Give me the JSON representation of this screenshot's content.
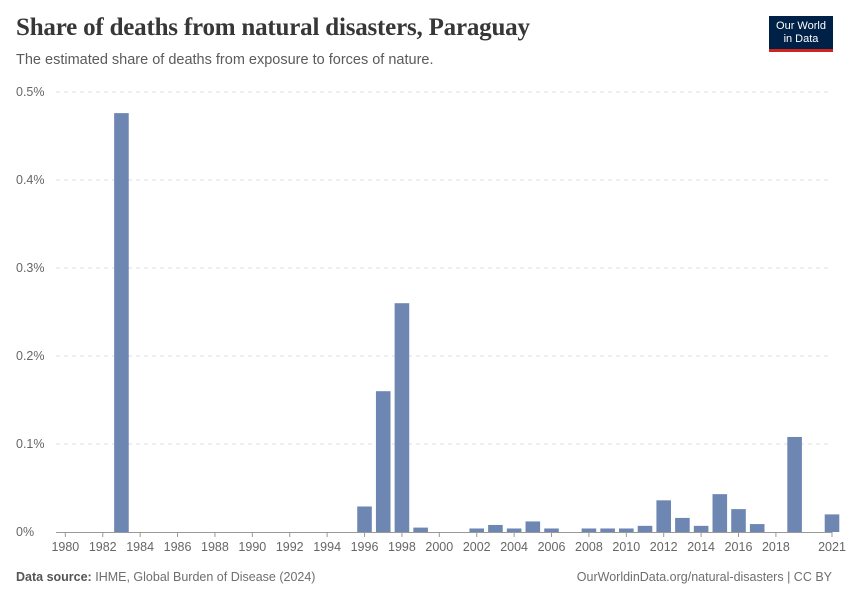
{
  "header": {
    "title": "Share of deaths from natural disasters, Paraguay",
    "subtitle": "The estimated share of deaths from exposure to forces of nature."
  },
  "logo": {
    "line1": "Our World",
    "line2": "in Data"
  },
  "footer": {
    "source_label": "Data source:",
    "source_text": "IHME, Global Burden of Disease (2024)",
    "link": "OurWorldinData.org/natural-disasters | CC BY"
  },
  "colors": {
    "bar": "#6d86b2",
    "grid": "#dddddd",
    "axis": "#999999",
    "text": "#666666"
  },
  "chart_data": {
    "type": "bar",
    "title": "Share of deaths from natural disasters, Paraguay",
    "xlabel": "",
    "ylabel": "",
    "ylim": [
      0,
      0.5
    ],
    "y_ticks": [
      0,
      0.1,
      0.2,
      0.3,
      0.4,
      0.5
    ],
    "y_tick_labels": [
      "0%",
      "0.1%",
      "0.2%",
      "0.3%",
      "0.4%",
      "0.5%"
    ],
    "x_tick_labels": [
      "1980",
      "1982",
      "1984",
      "1986",
      "1988",
      "1990",
      "1992",
      "1994",
      "1996",
      "1998",
      "2000",
      "2002",
      "2004",
      "2006",
      "2008",
      "2010",
      "2012",
      "2014",
      "2016",
      "2018",
      "2021"
    ],
    "x_range": [
      1980,
      2021
    ],
    "categories": [
      1980,
      1981,
      1982,
      1983,
      1984,
      1985,
      1986,
      1987,
      1988,
      1989,
      1990,
      1991,
      1992,
      1993,
      1994,
      1995,
      1996,
      1997,
      1998,
      1999,
      2000,
      2001,
      2002,
      2003,
      2004,
      2005,
      2006,
      2007,
      2008,
      2009,
      2010,
      2011,
      2012,
      2013,
      2014,
      2015,
      2016,
      2017,
      2018,
      2019,
      2020,
      2021
    ],
    "values": [
      0,
      0,
      0,
      0.476,
      0,
      0,
      0,
      0,
      0,
      0,
      0,
      0,
      0,
      0,
      0,
      0,
      0.029,
      0.16,
      0.26,
      0.005,
      0,
      0,
      0.004,
      0.008,
      0.004,
      0.012,
      0.004,
      0,
      0.004,
      0.004,
      0.004,
      0.007,
      0.036,
      0.016,
      0.007,
      0.043,
      0.026,
      0.009,
      0,
      0.108,
      0,
      0.02
    ],
    "unit": "%"
  }
}
